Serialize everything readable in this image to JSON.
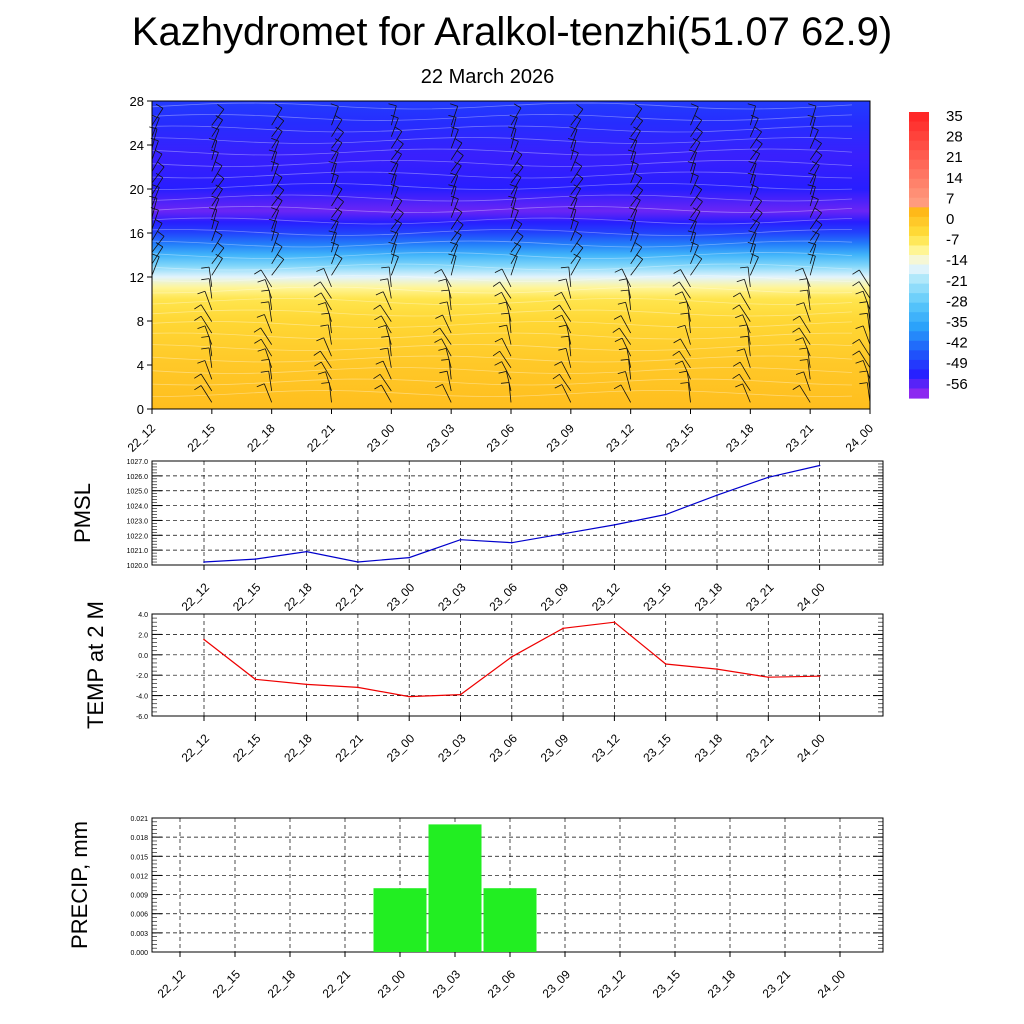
{
  "header": {
    "title": "Kazhydromet for Aralkol-tenzhi(51.07 62.9)",
    "date": "22 March 2026"
  },
  "colors": {
    "pmsl_line": "#0000cc",
    "temp_line": "#ee0000",
    "precip_bar": "#22ee22",
    "warm_fill": "#ffc21a",
    "cold_fill": "#8c2ef0",
    "jet_core": "#1a1aff"
  },
  "chart_data": [
    {
      "type": "heatmap",
      "title": "Kazhydromet for Aralkol-tenzhi(51.07 62.9)",
      "subtitle": "22 March 2026",
      "categories": [
        "22_12",
        "22_15",
        "22_18",
        "22_21",
        "23_00",
        "23_03",
        "23_06",
        "23_09",
        "23_12",
        "23_15",
        "23_18",
        "23_21",
        "24_00"
      ],
      "y_ticks": [
        "0",
        "4",
        "8",
        "12",
        "16",
        "20",
        "24",
        "28"
      ],
      "ylim": [
        0,
        28
      ],
      "colorbar_labels": [
        "35",
        "28",
        "21",
        "14",
        "7",
        "0",
        "-7",
        "-14",
        "-21",
        "-28",
        "-35",
        "-42",
        "-49",
        "-56"
      ],
      "levels": [
        0,
        4,
        8,
        10,
        11,
        12,
        13,
        14,
        15,
        16,
        17,
        18,
        20,
        23,
        26,
        28
      ],
      "level_values": [
        2,
        0,
        -3,
        -6,
        -10,
        -16,
        -24,
        -32,
        -40,
        -47,
        -52,
        -56,
        -52,
        -53,
        -50,
        -48
      ],
      "wind_barbs": true
    },
    {
      "type": "line",
      "ylabel": "PMSL",
      "categories": [
        "22_12",
        "22_15",
        "22_18",
        "22_21",
        "23_00",
        "23_03",
        "23_06",
        "23_09",
        "23_12",
        "23_15",
        "23_18",
        "23_21",
        "24_00"
      ],
      "y_ticks": [
        "1020.0",
        "1021.0",
        "1022.0",
        "1023.0",
        "1024.0",
        "1025.0",
        "1026.0",
        "1027.0"
      ],
      "ylim": [
        1020,
        1027
      ],
      "grid": true,
      "values": [
        1020.2,
        1020.4,
        1020.9,
        1020.2,
        1020.5,
        1021.7,
        1021.5,
        1022.1,
        1022.7,
        1023.4,
        1024.7,
        1025.9,
        1026.7
      ]
    },
    {
      "type": "line",
      "ylabel": "TEMP at 2 M",
      "categories": [
        "22_12",
        "22_15",
        "22_18",
        "22_21",
        "23_00",
        "23_03",
        "23_06",
        "23_09",
        "23_12",
        "23_15",
        "23_18",
        "23_21",
        "24_00"
      ],
      "y_ticks": [
        "-6.0",
        "-4.0",
        "-2.0",
        "0.0",
        "2.0",
        "4.0"
      ],
      "ylim": [
        -6,
        4
      ],
      "grid": true,
      "values": [
        1.5,
        -2.4,
        -2.9,
        -3.2,
        -4.1,
        -3.9,
        -0.2,
        2.6,
        3.2,
        -0.9,
        -1.4,
        -2.2,
        -2.1
      ]
    },
    {
      "type": "bar",
      "ylabel": "PRECIP, mm",
      "categories": [
        "22_12",
        "22_15",
        "22_18",
        "22_21",
        "23_00",
        "23_03",
        "23_06",
        "23_09",
        "23_12",
        "23_15",
        "23_18",
        "23_21",
        "24_00"
      ],
      "y_ticks": [
        "0.000",
        "0.003",
        "0.006",
        "0.009",
        "0.012",
        "0.015",
        "0.018",
        "0.021"
      ],
      "ylim": [
        0,
        0.021
      ],
      "grid": true,
      "values": [
        0,
        0,
        0,
        0,
        0.01,
        0.02,
        0.01,
        0,
        0,
        0,
        0,
        0,
        0
      ]
    }
  ]
}
